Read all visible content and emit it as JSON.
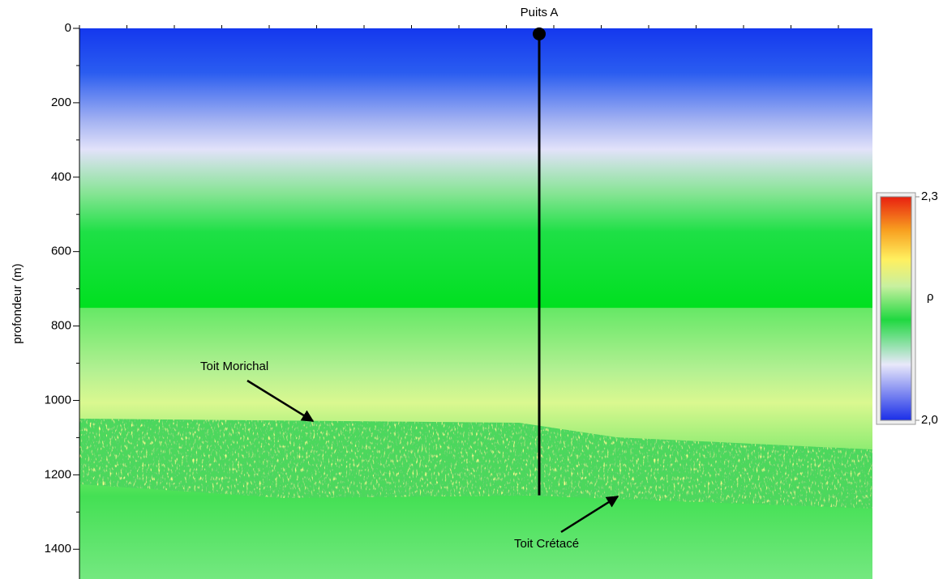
{
  "chart_data": {
    "type": "section",
    "ylabel": "profondeur (m)",
    "ylim": [
      0,
      1480
    ],
    "yticks": [
      0,
      200,
      400,
      600,
      800,
      1000,
      1200,
      1400
    ],
    "well": {
      "name": "Puits A",
      "top": 15,
      "bottom": 1255
    },
    "annotations": [
      "Toit Morichal",
      "Toit Crétacé"
    ],
    "colorbar": {
      "label": "ρ",
      "clim": [
        2.0,
        2.3
      ],
      "ticks": [
        {
          "value": 2.3,
          "label": "2,3"
        },
        {
          "value": 2.0,
          "label": "2,0"
        }
      ]
    }
  }
}
